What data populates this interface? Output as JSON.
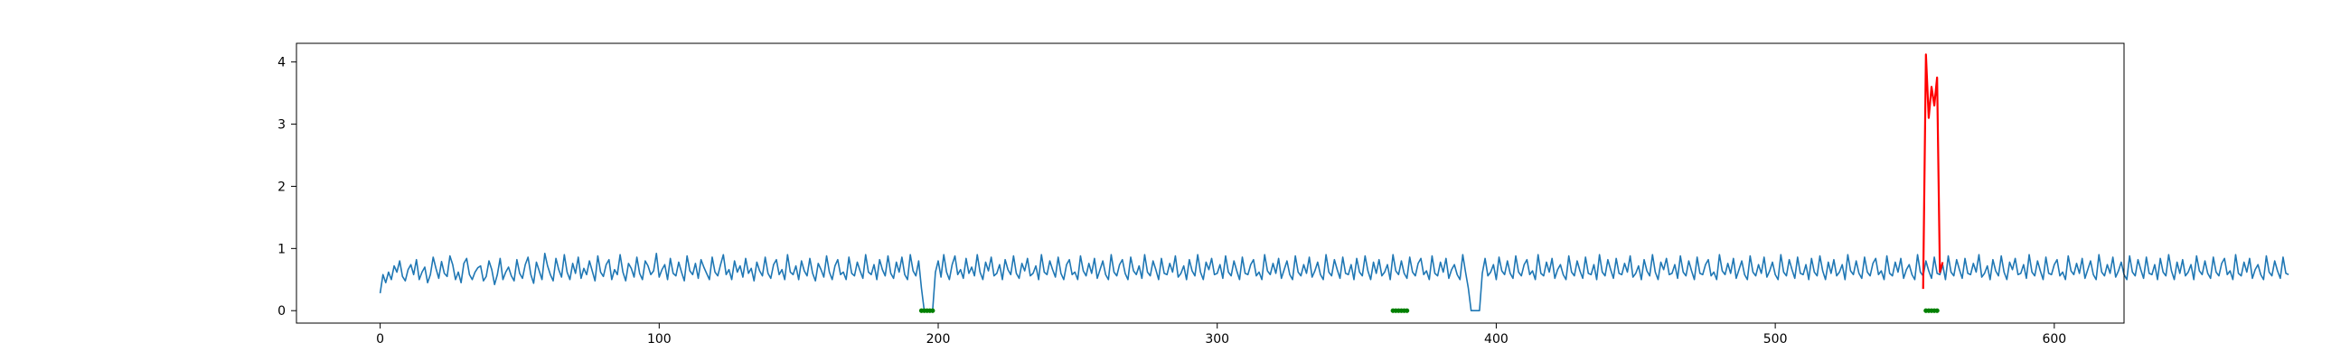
{
  "chart_data": {
    "type": "line",
    "title": "",
    "xlabel": "",
    "ylabel": "",
    "xlim": [
      -30,
      625
    ],
    "ylim": [
      -0.2,
      4.3
    ],
    "x_ticks": [
      0,
      100,
      200,
      300,
      400,
      500,
      600
    ],
    "y_ticks": [
      0,
      1,
      2,
      3,
      4
    ],
    "grid": false,
    "legend": "none",
    "colors": {
      "signal": "#1f77b4",
      "anomaly": "#ff0000",
      "marker": "#008000",
      "axes": "#000000"
    },
    "series": [
      {
        "role": "signal",
        "x_start": 0,
        "x_step": 1,
        "values": [
          0.28,
          0.58,
          0.45,
          0.62,
          0.5,
          0.72,
          0.62,
          0.8,
          0.55,
          0.48,
          0.66,
          0.74,
          0.58,
          0.82,
          0.5,
          0.62,
          0.7,
          0.45,
          0.58,
          0.86,
          0.68,
          0.52,
          0.79,
          0.6,
          0.55,
          0.88,
          0.74,
          0.5,
          0.62,
          0.45,
          0.76,
          0.84,
          0.58,
          0.5,
          0.62,
          0.69,
          0.72,
          0.48,
          0.55,
          0.8,
          0.66,
          0.42,
          0.58,
          0.84,
          0.5,
          0.62,
          0.7,
          0.56,
          0.48,
          0.82,
          0.6,
          0.52,
          0.74,
          0.86,
          0.58,
          0.44,
          0.78,
          0.64,
          0.5,
          0.92,
          0.72,
          0.58,
          0.48,
          0.84,
          0.66,
          0.54,
          0.9,
          0.62,
          0.5,
          0.76,
          0.6,
          0.86,
          0.52,
          0.68,
          0.58,
          0.8,
          0.64,
          0.48,
          0.88,
          0.62,
          0.55,
          0.74,
          0.82,
          0.5,
          0.66,
          0.58,
          0.9,
          0.62,
          0.48,
          0.76,
          0.68,
          0.54,
          0.86,
          0.6,
          0.5,
          0.8,
          0.72,
          0.58,
          0.64,
          0.92,
          0.54,
          0.66,
          0.74,
          0.5,
          0.84,
          0.6,
          0.56,
          0.78,
          0.62,
          0.48,
          0.88,
          0.64,
          0.58,
          0.76,
          0.52,
          0.82,
          0.7,
          0.6,
          0.5,
          0.86,
          0.62,
          0.56,
          0.74,
          0.9,
          0.58,
          0.66,
          0.5,
          0.8,
          0.62,
          0.72,
          0.54,
          0.84,
          0.6,
          0.68,
          0.48,
          0.78,
          0.64,
          0.56,
          0.86,
          0.6,
          0.52,
          0.74,
          0.82,
          0.58,
          0.66,
          0.5,
          0.9,
          0.62,
          0.58,
          0.72,
          0.5,
          0.8,
          0.64,
          0.56,
          0.84,
          0.6,
          0.48,
          0.76,
          0.66,
          0.54,
          0.88,
          0.62,
          0.5,
          0.72,
          0.82,
          0.58,
          0.62,
          0.5,
          0.86,
          0.6,
          0.56,
          0.78,
          0.64,
          0.52,
          0.9,
          0.62,
          0.58,
          0.74,
          0.5,
          0.82,
          0.66,
          0.56,
          0.88,
          0.6,
          0.52,
          0.78,
          0.62,
          0.86,
          0.58,
          0.5,
          0.9,
          0.64,
          0.56,
          0.8,
          0.36,
          0.0,
          0.0,
          0.0,
          0.0,
          0.62,
          0.8,
          0.54,
          0.9,
          0.62,
          0.5,
          0.74,
          0.88,
          0.58,
          0.66,
          0.52,
          0.84,
          0.6,
          0.7,
          0.56,
          0.9,
          0.62,
          0.5,
          0.78,
          0.64,
          0.86,
          0.56,
          0.6,
          0.74,
          0.5,
          0.82,
          0.66,
          0.58,
          0.88,
          0.6,
          0.52,
          0.76,
          0.64,
          0.84,
          0.56,
          0.6,
          0.72,
          0.5,
          0.9,
          0.62,
          0.58,
          0.8,
          0.66,
          0.54,
          0.86,
          0.6,
          0.5,
          0.74,
          0.82,
          0.58,
          0.62,
          0.5,
          0.88,
          0.64,
          0.56,
          0.76,
          0.6,
          0.84,
          0.52,
          0.66,
          0.8,
          0.58,
          0.5,
          0.9,
          0.62,
          0.56,
          0.74,
          0.82,
          0.6,
          0.5,
          0.86,
          0.64,
          0.58,
          0.72,
          0.52,
          0.9,
          0.62,
          0.56,
          0.8,
          0.66,
          0.5,
          0.84,
          0.6,
          0.58,
          0.76,
          0.62,
          0.88,
          0.54,
          0.6,
          0.72,
          0.5,
          0.82,
          0.64,
          0.56,
          0.9,
          0.62,
          0.5,
          0.78,
          0.66,
          0.84,
          0.58,
          0.6,
          0.74,
          0.52,
          0.88,
          0.62,
          0.56,
          0.8,
          0.64,
          0.5,
          0.86,
          0.6,
          0.58,
          0.74,
          0.82,
          0.56,
          0.62,
          0.5,
          0.9,
          0.64,
          0.58,
          0.76,
          0.6,
          0.84,
          0.52,
          0.66,
          0.8,
          0.58,
          0.5,
          0.88,
          0.62,
          0.56,
          0.74,
          0.6,
          0.86,
          0.54,
          0.64,
          0.78,
          0.58,
          0.5,
          0.9,
          0.62,
          0.56,
          0.82,
          0.66,
          0.52,
          0.86,
          0.6,
          0.58,
          0.74,
          0.5,
          0.84,
          0.62,
          0.56,
          0.88,
          0.64,
          0.5,
          0.78,
          0.6,
          0.82,
          0.56,
          0.62,
          0.74,
          0.5,
          0.9,
          0.64,
          0.58,
          0.8,
          0.6,
          0.52,
          0.86,
          0.62,
          0.56,
          0.76,
          0.84,
          0.58,
          0.64,
          0.5,
          0.88,
          0.6,
          0.56,
          0.78,
          0.62,
          0.84,
          0.52,
          0.66,
          0.74,
          0.58,
          0.5,
          0.9,
          0.62,
          0.36,
          0.0,
          0.0,
          0.0,
          0.0,
          0.6,
          0.84,
          0.56,
          0.62,
          0.74,
          0.5,
          0.86,
          0.64,
          0.58,
          0.8,
          0.6,
          0.52,
          0.88,
          0.62,
          0.56,
          0.74,
          0.82,
          0.58,
          0.64,
          0.5,
          0.9,
          0.6,
          0.56,
          0.78,
          0.62,
          0.84,
          0.52,
          0.66,
          0.74,
          0.58,
          0.5,
          0.88,
          0.62,
          0.56,
          0.8,
          0.64,
          0.52,
          0.86,
          0.6,
          0.58,
          0.74,
          0.5,
          0.9,
          0.62,
          0.56,
          0.82,
          0.66,
          0.52,
          0.84,
          0.6,
          0.58,
          0.76,
          0.62,
          0.88,
          0.54,
          0.6,
          0.72,
          0.5,
          0.82,
          0.64,
          0.56,
          0.9,
          0.62,
          0.5,
          0.78,
          0.66,
          0.84,
          0.58,
          0.6,
          0.74,
          0.52,
          0.88,
          0.62,
          0.56,
          0.8,
          0.64,
          0.5,
          0.86,
          0.6,
          0.58,
          0.74,
          0.82,
          0.56,
          0.62,
          0.5,
          0.9,
          0.64,
          0.58,
          0.76,
          0.6,
          0.84,
          0.52,
          0.66,
          0.8,
          0.58,
          0.5,
          0.88,
          0.62,
          0.56,
          0.74,
          0.6,
          0.86,
          0.54,
          0.64,
          0.78,
          0.58,
          0.5,
          0.9,
          0.62,
          0.56,
          0.82,
          0.66,
          0.52,
          0.86,
          0.6,
          0.58,
          0.74,
          0.5,
          0.84,
          0.62,
          0.56,
          0.88,
          0.64,
          0.5,
          0.78,
          0.6,
          0.82,
          0.56,
          0.62,
          0.74,
          0.5,
          0.9,
          0.64,
          0.58,
          0.8,
          0.6,
          0.52,
          0.86,
          0.62,
          0.56,
          0.76,
          0.84,
          0.58,
          0.64,
          0.5,
          0.88,
          0.6,
          0.56,
          0.78,
          0.62,
          0.84,
          0.52,
          0.66,
          0.74,
          0.58,
          0.5,
          0.9,
          0.62,
          0.56,
          0.8,
          0.64,
          0.52,
          0.86,
          0.6,
          0.58,
          0.74,
          0.5,
          0.88,
          0.62,
          0.56,
          0.82,
          0.66,
          0.52,
          0.84,
          0.6,
          0.58,
          0.76,
          0.62,
          0.9,
          0.54,
          0.6,
          0.72,
          0.5,
          0.82,
          0.64,
          0.56,
          0.88,
          0.62,
          0.5,
          0.78,
          0.66,
          0.84,
          0.58,
          0.6,
          0.74,
          0.52,
          0.9,
          0.62,
          0.56,
          0.8,
          0.64,
          0.5,
          0.86,
          0.6,
          0.58,
          0.74,
          0.82,
          0.56,
          0.62,
          0.5,
          0.88,
          0.64,
          0.58,
          0.76,
          0.6,
          0.84,
          0.52,
          0.66,
          0.8,
          0.58,
          0.5,
          0.9,
          0.62,
          0.56,
          0.74,
          0.6,
          0.86,
          0.54,
          0.64,
          0.78,
          0.58,
          0.5,
          0.88,
          0.62,
          0.56,
          0.82,
          0.66,
          0.52,
          0.86,
          0.6,
          0.58,
          0.74,
          0.5,
          0.84,
          0.62,
          0.56,
          0.9,
          0.64,
          0.5,
          0.78,
          0.6,
          0.82,
          0.56,
          0.62,
          0.74,
          0.5,
          0.88,
          0.64,
          0.58,
          0.8,
          0.6,
          0.52,
          0.86,
          0.62,
          0.56,
          0.76,
          0.84,
          0.58,
          0.64,
          0.5,
          0.9,
          0.6,
          0.56,
          0.78,
          0.62,
          0.84,
          0.52,
          0.66,
          0.74,
          0.58,
          0.5,
          0.88,
          0.62,
          0.56,
          0.8,
          0.64,
          0.52,
          0.86,
          0.6,
          0.58
        ]
      },
      {
        "role": "anomaly",
        "x": [
          553,
          554,
          555,
          556,
          557,
          558,
          559,
          560
        ],
        "values": [
          0.35,
          4.12,
          3.1,
          3.6,
          3.3,
          3.75,
          0.62,
          0.78
        ]
      }
    ],
    "markers": [
      {
        "role": "marker",
        "x": [
          194,
          195,
          196,
          197,
          198
        ],
        "values": [
          0.0,
          0.0,
          0.0,
          0.0,
          0.0
        ]
      },
      {
        "role": "marker",
        "x": [
          363,
          364,
          365,
          366,
          367,
          368
        ],
        "values": [
          0.0,
          0.0,
          0.0,
          0.0,
          0.0,
          0.0
        ]
      },
      {
        "role": "marker",
        "x": [
          554,
          555,
          556,
          557,
          558
        ],
        "values": [
          0.0,
          0.0,
          0.0,
          0.0,
          0.0
        ]
      }
    ]
  }
}
